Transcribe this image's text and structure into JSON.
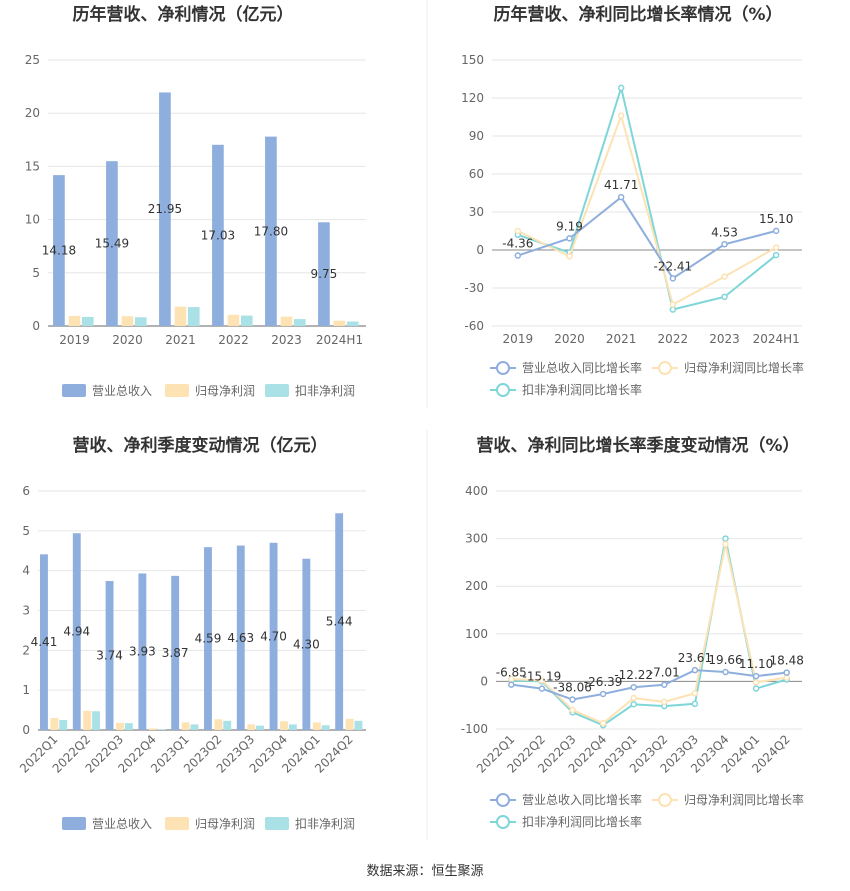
{
  "source": "数据来源：恒生聚源",
  "colors": {
    "revenue": "#8eaedd",
    "net": "#fde2b4",
    "deducted": "#a9e1e6",
    "rev_line": "#8eaedd",
    "net_line": "#fde2b4",
    "ded_line": "#7fd6d9"
  },
  "chart_data": [
    {
      "type": "bar",
      "title": "历年营收、净利情况（亿元）",
      "categories": [
        "2019",
        "2020",
        "2021",
        "2022",
        "2023",
        "2024H1"
      ],
      "ylim": [
        0,
        25
      ],
      "yticks": [
        0,
        5,
        10,
        15,
        20,
        25
      ],
      "series": [
        {
          "name": "营业总收入",
          "values": [
            14.18,
            15.49,
            21.95,
            17.03,
            17.8,
            9.75
          ],
          "labels": [
            "14.18",
            "15.49",
            "21.95",
            "17.03",
            "17.80",
            "9.75"
          ]
        },
        {
          "name": "归母净利润",
          "values": [
            0.95,
            0.92,
            1.82,
            1.05,
            0.88,
            0.5
          ]
        },
        {
          "name": "扣非净利润",
          "values": [
            0.85,
            0.82,
            1.78,
            0.98,
            0.65,
            0.42
          ]
        }
      ]
    },
    {
      "type": "line",
      "title": "历年营收、净利同比增长率情况（%）",
      "categories": [
        "2019",
        "2020",
        "2021",
        "2022",
        "2023",
        "2024H1"
      ],
      "ylim": [
        -60,
        150
      ],
      "yticks": [
        -60,
        -30,
        0,
        30,
        60,
        90,
        120,
        150
      ],
      "series": [
        {
          "name": "营业总收入同比增长率",
          "values": [
            -4.36,
            9.19,
            41.71,
            -22.41,
            4.53,
            15.1
          ],
          "labels": [
            "-4.36",
            "9.19",
            "41.71",
            "-22.41",
            "4.53",
            "15.10"
          ]
        },
        {
          "name": "归母净利润同比增长率",
          "values": [
            15,
            -5,
            106,
            -43,
            -21,
            2
          ]
        },
        {
          "name": "扣非净利润同比增长率",
          "values": [
            12,
            -2,
            128,
            -47,
            -37,
            -4
          ]
        }
      ]
    },
    {
      "type": "bar",
      "title": "营收、净利季度变动情况（亿元）",
      "categories": [
        "2022Q1",
        "2022Q2",
        "2022Q3",
        "2022Q4",
        "2023Q1",
        "2023Q2",
        "2023Q3",
        "2023Q4",
        "2024Q1",
        "2024Q2"
      ],
      "ylim": [
        0,
        6
      ],
      "yticks": [
        0,
        1,
        2,
        3,
        4,
        5,
        6
      ],
      "series": [
        {
          "name": "营业总收入",
          "values": [
            4.41,
            4.94,
            3.74,
            3.93,
            3.87,
            4.59,
            4.63,
            4.7,
            4.3,
            5.44
          ],
          "labels": [
            "4.41",
            "4.94",
            "3.74",
            "3.93",
            "3.87",
            "4.59",
            "4.63",
            "4.70",
            "4.30",
            "5.44"
          ]
        },
        {
          "name": "归母净利润",
          "values": [
            0.3,
            0.48,
            0.18,
            0.04,
            0.19,
            0.27,
            0.14,
            0.22,
            0.19,
            0.28
          ]
        },
        {
          "name": "扣非净利润",
          "values": [
            0.25,
            0.47,
            0.17,
            0.02,
            0.14,
            0.23,
            0.11,
            0.14,
            0.12,
            0.23
          ]
        }
      ]
    },
    {
      "type": "line",
      "title": "营收、净利同比增长率季度变动情况（%）",
      "categories": [
        "2022Q1",
        "2022Q2",
        "2022Q3",
        "2022Q4",
        "2023Q1",
        "2023Q2",
        "2023Q3",
        "2023Q4",
        "2024Q1",
        "2024Q2"
      ],
      "ylim": [
        -100,
        400
      ],
      "yticks": [
        -100,
        0,
        100,
        200,
        300,
        400
      ],
      "series": [
        {
          "name": "营业总收入同比增长率",
          "values": [
            -6.85,
            -15.19,
            -38.06,
            -26.39,
            -12.22,
            -7.01,
            23.61,
            19.66,
            11.1,
            18.48
          ],
          "labels": [
            "-6.85",
            "-15.19",
            "-38.06",
            "-26.39",
            "-12.22",
            "-7.01",
            "23.61",
            "19.66",
            "11.10",
            "18.48"
          ]
        },
        {
          "name": "归母净利润同比增长率",
          "values": [
            5,
            2,
            -60,
            -88,
            -35,
            -43,
            -25,
            288,
            -2,
            8
          ]
        },
        {
          "name": "扣非净利润同比增长率",
          "values": [
            2,
            0,
            -65,
            -92,
            -48,
            -52,
            -47,
            300,
            -15,
            4
          ]
        }
      ]
    }
  ]
}
